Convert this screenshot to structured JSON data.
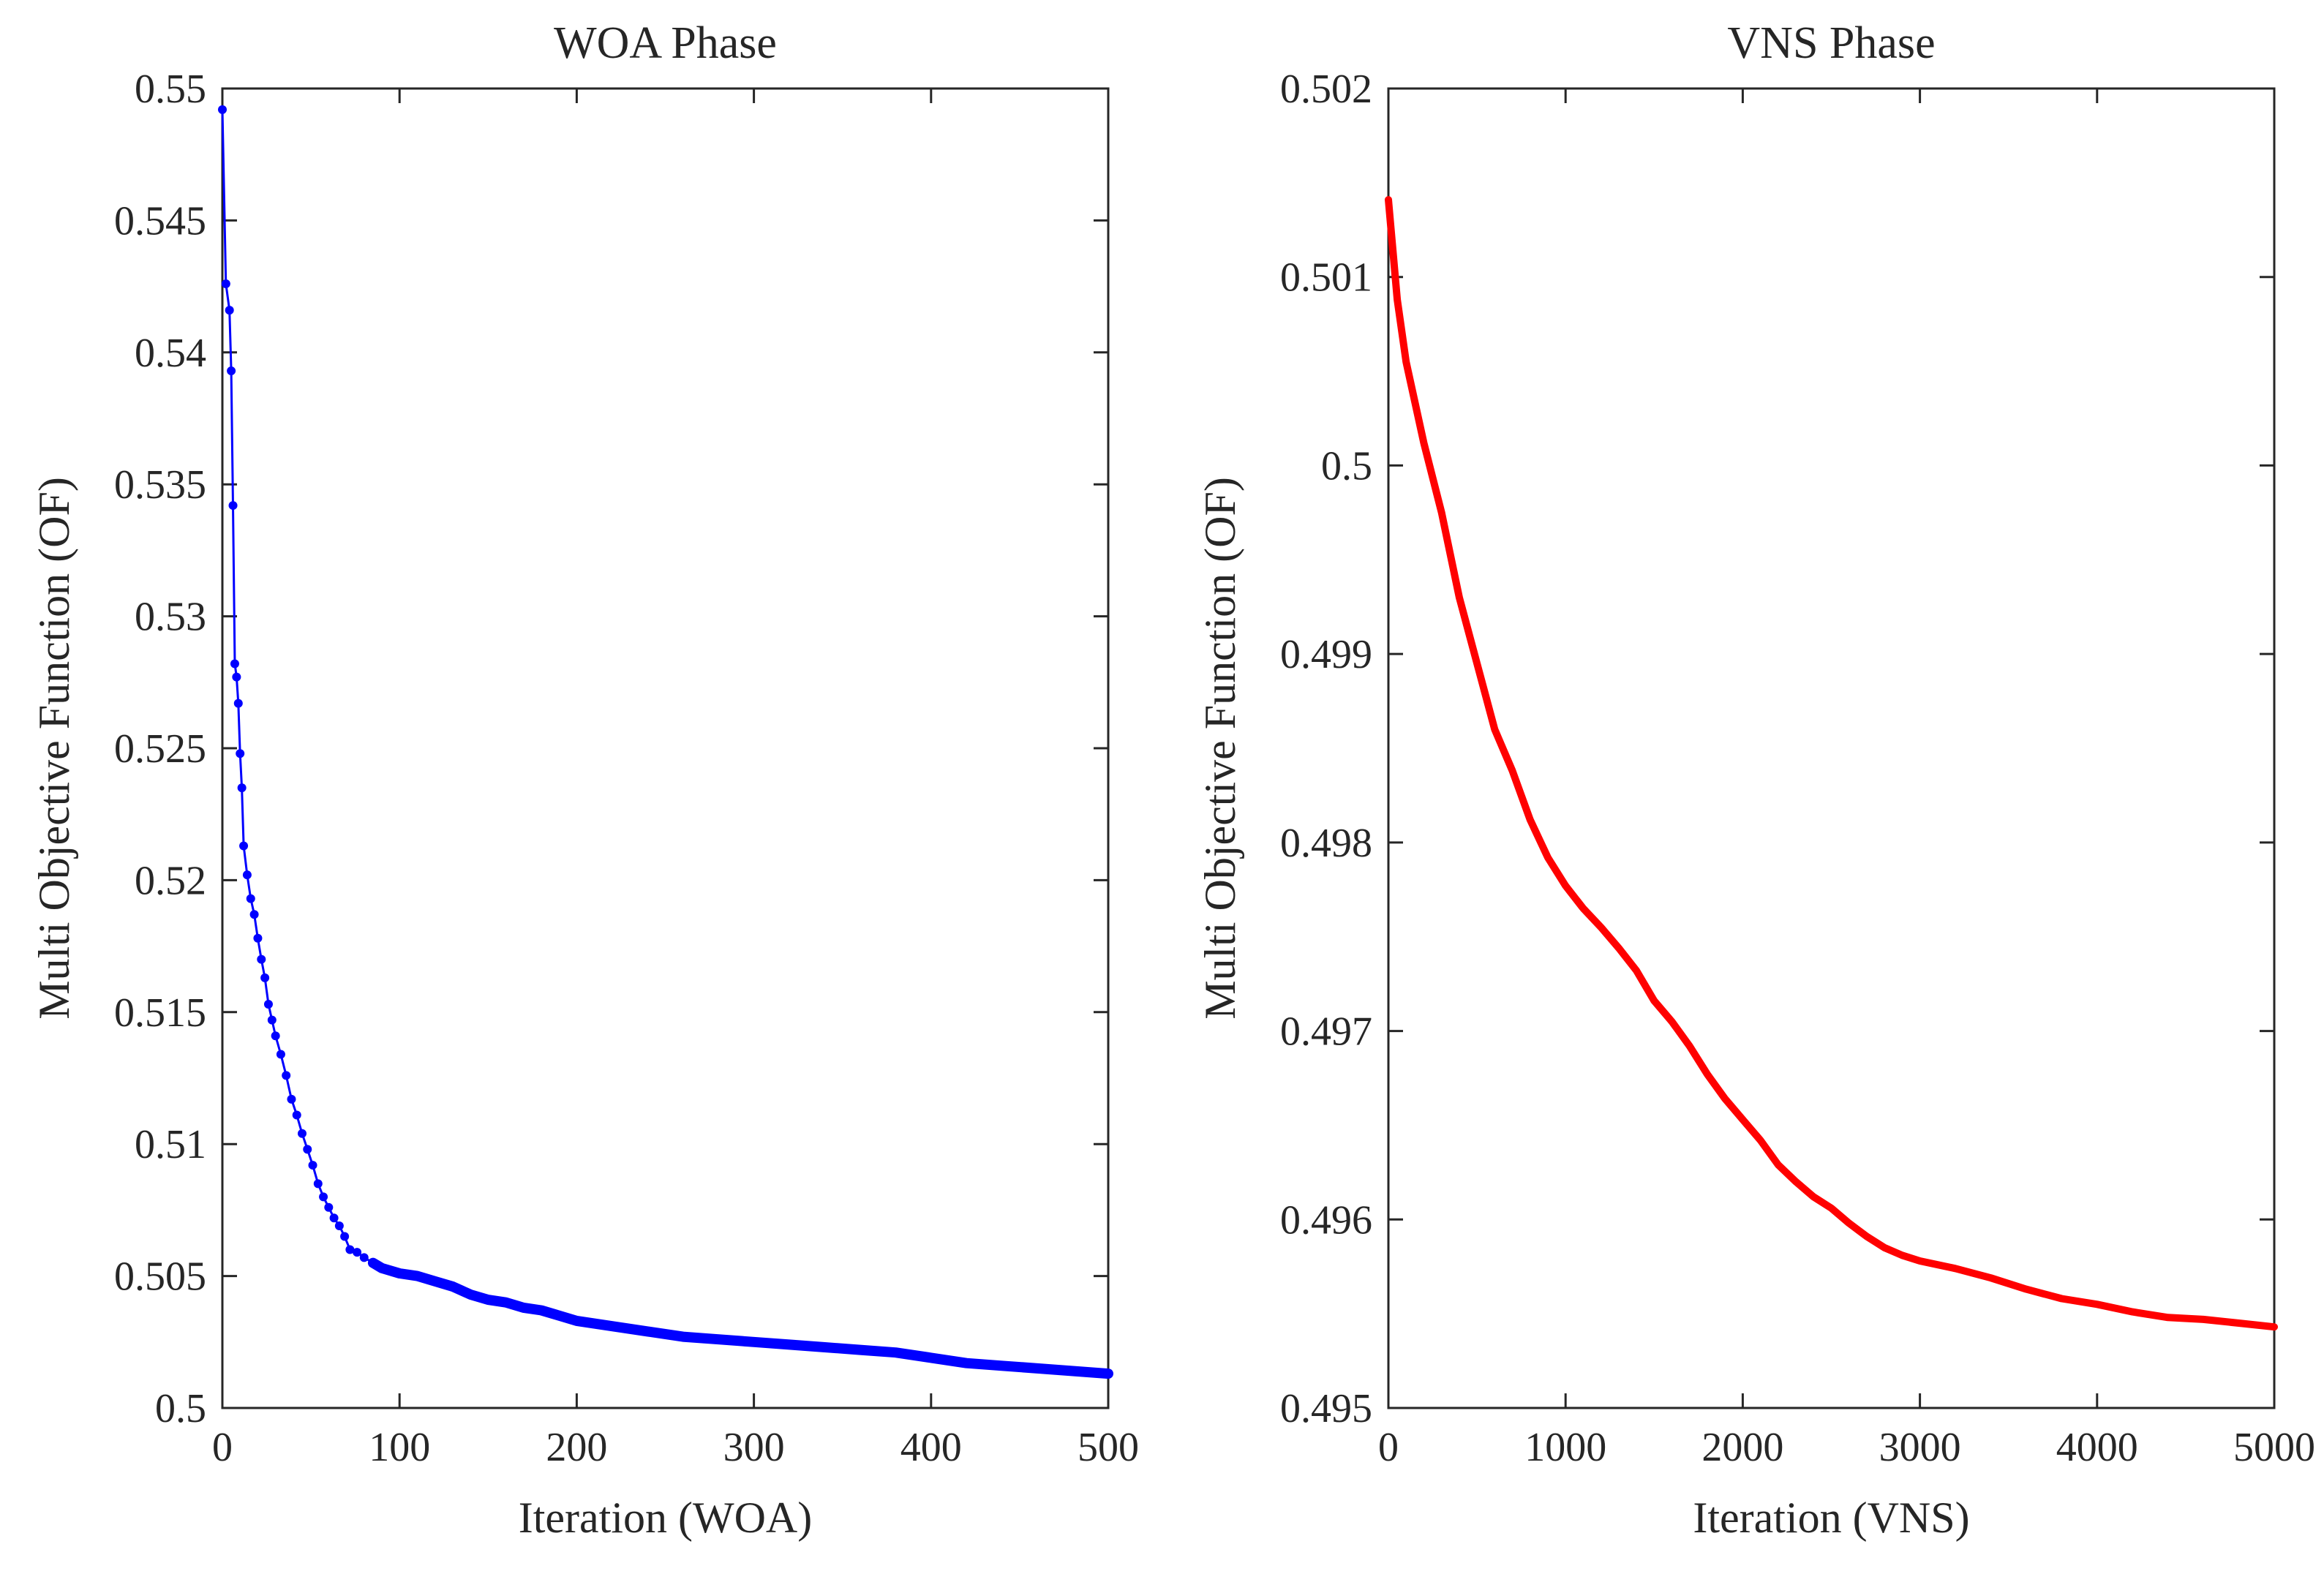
{
  "chart_data": [
    {
      "type": "line",
      "title": "WOA Phase",
      "xlabel": "Iteration (WOA)",
      "ylabel": "Multi Objective Function (OF)",
      "xlim": [
        0,
        500
      ],
      "ylim": [
        0.5,
        0.55
      ],
      "xticks": [
        0,
        100,
        200,
        300,
        400,
        500
      ],
      "xtick_labels": [
        "0",
        "100",
        "200",
        "300",
        "400",
        "500"
      ],
      "yticks": [
        0.5,
        0.505,
        0.51,
        0.515,
        0.52,
        0.525,
        0.53,
        0.535,
        0.54,
        0.545,
        0.55
      ],
      "ytick_labels": [
        "0.5",
        "0.505",
        "0.51",
        "0.515",
        "0.52",
        "0.525",
        "0.53",
        "0.535",
        "0.54",
        "0.545",
        "0.55"
      ],
      "grid": false,
      "series": [
        {
          "color": "#0000ff",
          "marker": "dot",
          "points": [
            [
              0,
              0.5492
            ],
            [
              2,
              0.5426
            ],
            [
              4,
              0.5416
            ],
            [
              5,
              0.5393
            ],
            [
              6,
              0.5342
            ],
            [
              7,
              0.5282
            ],
            [
              8,
              0.5277
            ],
            [
              9,
              0.5267
            ],
            [
              10,
              0.5248
            ],
            [
              11,
              0.5235
            ],
            [
              12,
              0.5213
            ],
            [
              14,
              0.5202
            ],
            [
              16,
              0.5193
            ],
            [
              18,
              0.5187
            ],
            [
              20,
              0.5178
            ],
            [
              22,
              0.517
            ],
            [
              24,
              0.5163
            ],
            [
              26,
              0.5153
            ],
            [
              28,
              0.5147
            ],
            [
              30,
              0.5141
            ],
            [
              33,
              0.5134
            ],
            [
              36,
              0.5126
            ],
            [
              39,
              0.5117
            ],
            [
              42,
              0.5111
            ],
            [
              45,
              0.5104
            ],
            [
              48,
              0.5098
            ],
            [
              51,
              0.5092
            ],
            [
              54,
              0.5085
            ],
            [
              57,
              0.508
            ],
            [
              60,
              0.5076
            ],
            [
              63,
              0.5072
            ],
            [
              66,
              0.5069
            ],
            [
              69,
              0.5065
            ],
            [
              72,
              0.506
            ],
            [
              76,
              0.5059
            ],
            [
              80,
              0.5057
            ],
            [
              85,
              0.5055
            ],
            [
              90,
              0.5053
            ],
            [
              100,
              0.5051
            ],
            [
              110,
              0.505
            ],
            [
              120,
              0.5048
            ],
            [
              130,
              0.5046
            ],
            [
              140,
              0.5043
            ],
            [
              150,
              0.5041
            ],
            [
              160,
              0.504
            ],
            [
              170,
              0.5038
            ],
            [
              180,
              0.5037
            ],
            [
              190,
              0.5035
            ],
            [
              200,
              0.5033
            ],
            [
              220,
              0.5031
            ],
            [
              240,
              0.5029
            ],
            [
              260,
              0.5027
            ],
            [
              280,
              0.5026
            ],
            [
              300,
              0.5025
            ],
            [
              320,
              0.5024
            ],
            [
              340,
              0.5023
            ],
            [
              360,
              0.5022
            ],
            [
              380,
              0.5021
            ],
            [
              400,
              0.5019
            ],
            [
              420,
              0.5017
            ],
            [
              440,
              0.5016
            ],
            [
              460,
              0.5015
            ],
            [
              480,
              0.5014
            ],
            [
              500,
              0.5013
            ]
          ]
        }
      ]
    },
    {
      "type": "line",
      "title": "VNS Phase",
      "xlabel": "Iteration (VNS)",
      "ylabel": "Multi Objective Function (OF)",
      "xlim": [
        0,
        5000
      ],
      "ylim": [
        0.495,
        0.502
      ],
      "xticks": [
        0,
        1000,
        2000,
        3000,
        4000,
        5000
      ],
      "xtick_labels": [
        "0",
        "1000",
        "2000",
        "3000",
        "4000",
        "5000"
      ],
      "yticks": [
        0.495,
        0.496,
        0.497,
        0.498,
        0.499,
        0.5,
        0.501,
        0.502
      ],
      "ytick_labels": [
        "0.495",
        "0.496",
        "0.497",
        "0.498",
        "0.499",
        "0.5",
        "0.501",
        "0.502"
      ],
      "grid": false,
      "series": [
        {
          "color": "#ff0000",
          "marker": "none",
          "points": [
            [
              0,
              0.50141
            ],
            [
              50,
              0.50088
            ],
            [
              100,
              0.50055
            ],
            [
              200,
              0.50012
            ],
            [
              300,
              0.49975
            ],
            [
              400,
              0.4993
            ],
            [
              500,
              0.49895
            ],
            [
              600,
              0.4986
            ],
            [
              700,
              0.49838
            ],
            [
              800,
              0.49812
            ],
            [
              900,
              0.49792
            ],
            [
              1000,
              0.49777
            ],
            [
              1100,
              0.49765
            ],
            [
              1200,
              0.49755
            ],
            [
              1300,
              0.49744
            ],
            [
              1400,
              0.49732
            ],
            [
              1500,
              0.49716
            ],
            [
              1600,
              0.49705
            ],
            [
              1700,
              0.49692
            ],
            [
              1800,
              0.49677
            ],
            [
              1900,
              0.49664
            ],
            [
              2000,
              0.49653
            ],
            [
              2100,
              0.49642
            ],
            [
              2200,
              0.49629
            ],
            [
              2300,
              0.4962
            ],
            [
              2400,
              0.49612
            ],
            [
              2500,
              0.49606
            ],
            [
              2600,
              0.49598
            ],
            [
              2700,
              0.49591
            ],
            [
              2800,
              0.49585
            ],
            [
              2900,
              0.49581
            ],
            [
              3000,
              0.49578
            ],
            [
              3200,
              0.49574
            ],
            [
              3400,
              0.49569
            ],
            [
              3600,
              0.49563
            ],
            [
              3800,
              0.49558
            ],
            [
              4000,
              0.49555
            ],
            [
              4200,
              0.49551
            ],
            [
              4400,
              0.49548
            ],
            [
              4600,
              0.49547
            ],
            [
              4800,
              0.49545
            ],
            [
              5000,
              0.49543
            ]
          ]
        }
      ]
    }
  ]
}
